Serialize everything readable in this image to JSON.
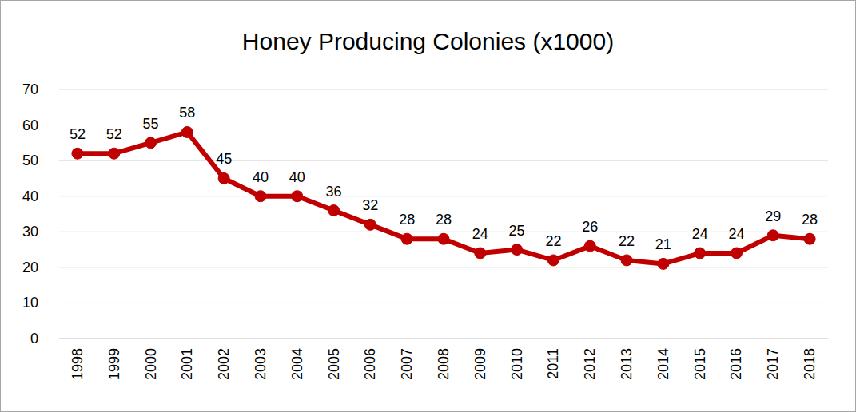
{
  "chart_data": {
    "type": "line",
    "title": "Honey Producing Colonies (x1000)",
    "categories": [
      "1998",
      "1999",
      "2000",
      "2001",
      "2002",
      "2003",
      "2004",
      "2005",
      "2006",
      "2007",
      "2008",
      "2009",
      "2010",
      "2011",
      "2012",
      "2013",
      "2014",
      "2015",
      "2016",
      "2017",
      "2018"
    ],
    "values": [
      52,
      52,
      55,
      58,
      45,
      40,
      40,
      36,
      32,
      28,
      28,
      24,
      25,
      22,
      26,
      22,
      21,
      24,
      24,
      29,
      28
    ],
    "color": "#c00000",
    "marker": "circle",
    "ylim": [
      0,
      70
    ],
    "yticks": [
      0,
      10,
      20,
      30,
      40,
      50,
      60,
      70
    ],
    "grid": true,
    "data_labels": true
  }
}
